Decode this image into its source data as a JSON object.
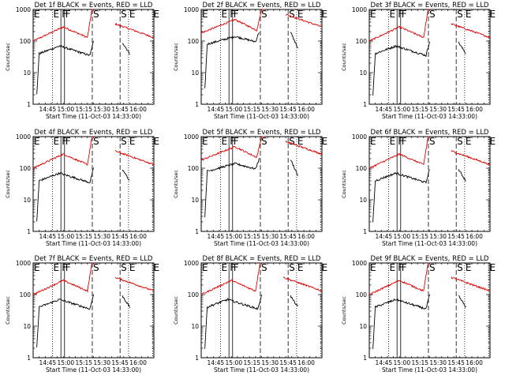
{
  "chart_data": {
    "type": "line",
    "layout": "3x3 grid of panels",
    "y_scale": "log",
    "ylim": [
      1,
      1000
    ],
    "x_range_minutes": [
      0,
      100
    ],
    "x_ticks": [
      {
        "t": 12,
        "label": "14:45"
      },
      {
        "t": 27,
        "label": "15:00"
      },
      {
        "t": 42,
        "label": "15:15"
      },
      {
        "t": 57,
        "label": "15:30"
      },
      {
        "t": 72,
        "label": "15:45"
      },
      {
        "t": 87,
        "label": "16:00"
      }
    ],
    "y_ticks": [
      {
        "v": 1,
        "label": "1"
      },
      {
        "v": 10,
        "label": "10"
      },
      {
        "v": 100,
        "label": "100"
      },
      {
        "v": 1000,
        "label": "1000"
      }
    ],
    "ylabel": "Counts/sec",
    "xlabel": "Start Time (11-Oct-03 14:33:00)",
    "legend_note": "BLACK = Events, RED = LLD",
    "series_colors": {
      "events": "#000000",
      "lld": "#dd0000"
    },
    "interval_markers": [
      {
        "label": "E",
        "t": 0,
        "style": "dotted"
      },
      {
        "label": "E",
        "t": 16,
        "style": "dotted"
      },
      {
        "label": "F",
        "t": 23,
        "style": "solid"
      },
      {
        "label": "F",
        "t": 26,
        "style": "solid"
      },
      {
        "label": "S",
        "t": 49,
        "style": "dashed"
      },
      {
        "label": "S",
        "t": 72,
        "style": "dashed"
      },
      {
        "label": "E",
        "t": 79,
        "style": "dotted"
      },
      {
        "label": "E",
        "t": 99,
        "style": "dotted"
      }
    ],
    "panels": [
      {
        "title": "Det 1f BLACK = Events, RED = LLD",
        "variant": "typical"
      },
      {
        "title": "Det 2f BLACK = Events, RED = LLD",
        "variant": "flat"
      },
      {
        "title": "Det 3f BLACK = Events, RED = LLD",
        "variant": "typical"
      },
      {
        "title": "Det 4f BLACK = Events, RED = LLD",
        "variant": "typical"
      },
      {
        "title": "Det 5f BLACK = Events, RED = LLD",
        "variant": "flat"
      },
      {
        "title": "Det 6f BLACK = Events, RED = LLD",
        "variant": "typical"
      },
      {
        "title": "Det 7f BLACK = Events, RED = LLD",
        "variant": "typical"
      },
      {
        "title": "Det 8f BLACK = Events, RED = LLD",
        "variant": "typical"
      },
      {
        "title": "Det 9f BLACK = Events, RED = LLD",
        "variant": "typical"
      }
    ],
    "curve_shapes": {
      "typical": {
        "lld": {
          "start": 100,
          "peak": 280,
          "peak_t": 25,
          "dip": 130,
          "dip_t": 45,
          "after_high": 350,
          "end": 130,
          "flare_t": 50,
          "flare_end_t": 68
        },
        "events": {
          "start_t": 3,
          "start": 2,
          "early": 40,
          "peak": 70,
          "peak_t": 22,
          "dip": 35,
          "dip_t": 47,
          "after_start_t": 74,
          "after_high": 90,
          "after_end": 40,
          "after_end_t": 80
        }
      },
      "flat": {
        "lld": {
          "start": 180,
          "peak": 480,
          "peak_t": 28,
          "dip": 220,
          "dip_t": 46,
          "after_high": 700,
          "end": 280,
          "flare_t": 52,
          "flare_end_t": 70
        },
        "events": {
          "start_t": 3,
          "start": 3,
          "early": 80,
          "peak": 140,
          "peak_t": 28,
          "dip": 95,
          "dip_t": 45,
          "after_start_t": 74,
          "after_high": 190,
          "after_end": 60,
          "after_end_t": 80
        }
      }
    }
  }
}
